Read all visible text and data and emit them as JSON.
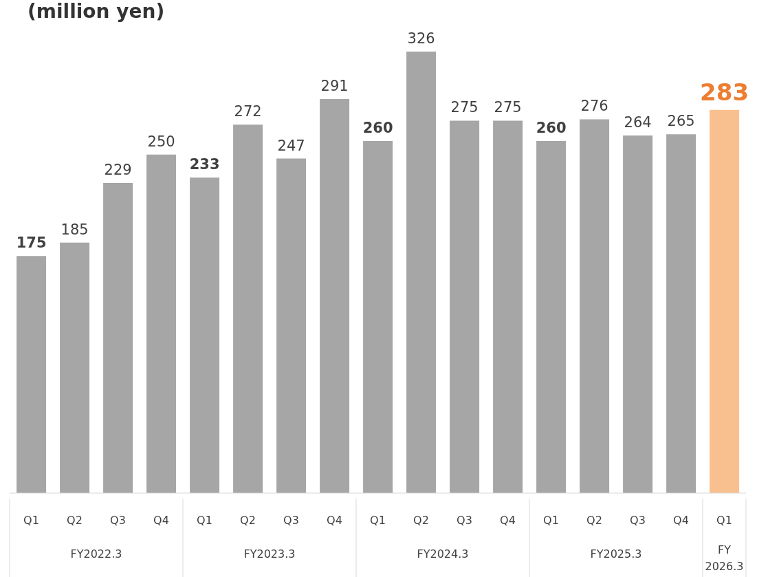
{
  "chart_data": {
    "type": "bar",
    "title": "(million yen)",
    "categories": [
      "Q1",
      "Q2",
      "Q3",
      "Q4",
      "Q1",
      "Q2",
      "Q3",
      "Q4",
      "Q1",
      "Q2",
      "Q3",
      "Q4",
      "Q1",
      "Q2",
      "Q3",
      "Q4",
      "Q1"
    ],
    "values": [
      175,
      185,
      229,
      250,
      233,
      272,
      247,
      291,
      260,
      326,
      275,
      275,
      260,
      276,
      264,
      265,
      283
    ],
    "colors": [
      "#a6a6a6",
      "#a6a6a6",
      "#a6a6a6",
      "#a6a6a6",
      "#a6a6a6",
      "#a6a6a6",
      "#a6a6a6",
      "#a6a6a6",
      "#a6a6a6",
      "#a6a6a6",
      "#a6a6a6",
      "#a6a6a6",
      "#a6a6a6",
      "#a6a6a6",
      "#a6a6a6",
      "#a6a6a6",
      "#f9c08f"
    ],
    "annotations": [
      "FY2022.3",
      "FY2023.3",
      "FY2024.3",
      "FY2025.3",
      "FY 2026.3"
    ],
    "data_labels": true
  }
}
